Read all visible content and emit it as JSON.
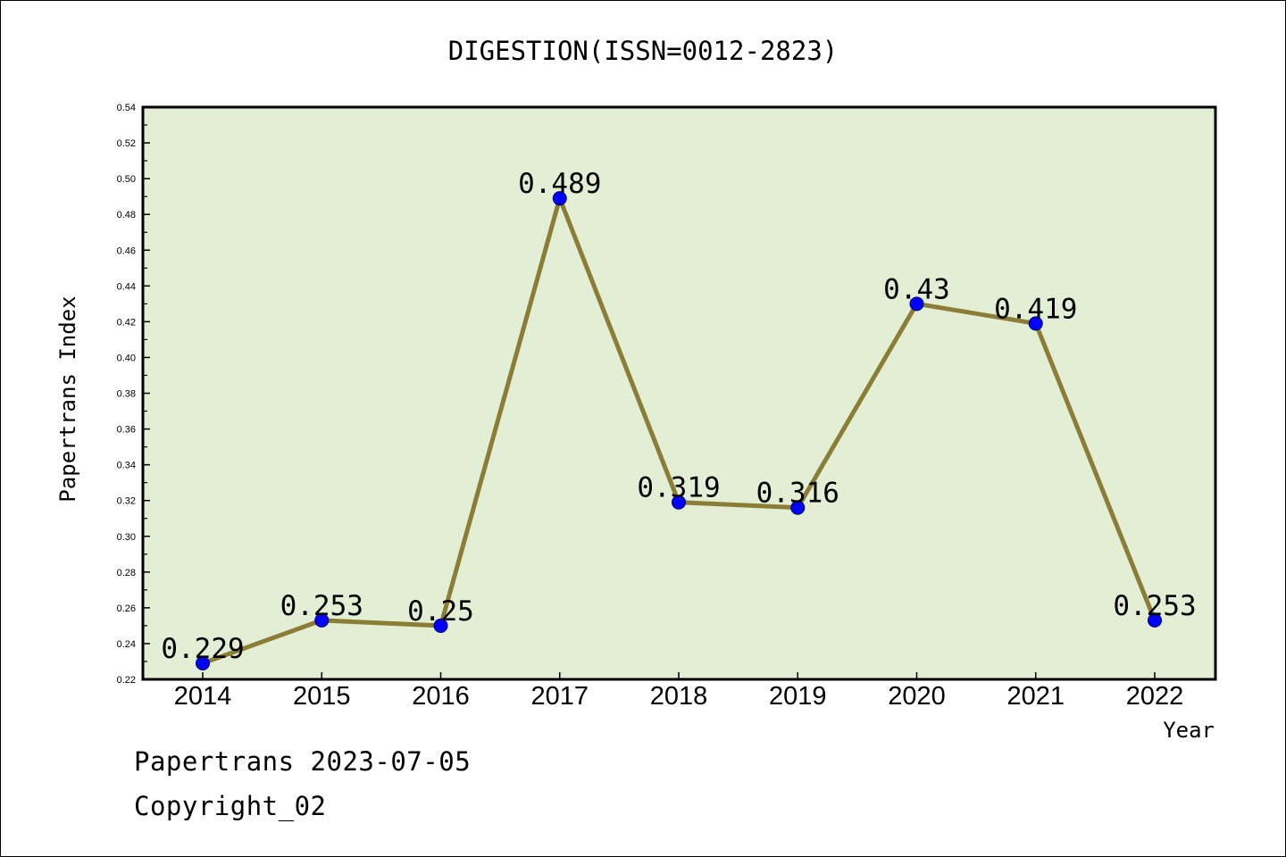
{
  "chart_data": {
    "type": "line",
    "title": "DIGESTION(ISSN=0012-2823)",
    "xlabel": "Year",
    "ylabel": "Papertrans Index",
    "categories": [
      "2014",
      "2015",
      "2016",
      "2017",
      "2018",
      "2019",
      "2020",
      "2021",
      "2022"
    ],
    "values": [
      0.229,
      0.253,
      0.25,
      0.489,
      0.319,
      0.316,
      0.43,
      0.419,
      0.253
    ],
    "data_labels": [
      "0.229",
      "0.253",
      "0.25",
      "0.489",
      "0.319",
      "0.316",
      "0.43",
      "0.419",
      "0.253"
    ],
    "ylim": [
      0.22,
      0.54
    ],
    "yticks": [
      "0.22",
      "0.24",
      "0.26",
      "0.28",
      "0.30",
      "0.32",
      "0.34",
      "0.36",
      "0.38",
      "0.40",
      "0.42",
      "0.44",
      "0.46",
      "0.48",
      "0.50",
      "0.52",
      "0.54"
    ],
    "grid": false,
    "colors": {
      "plot_background": "#e2efd5",
      "line": "#8b7d36",
      "marker": "#0000ff"
    }
  },
  "footer": {
    "line1": "Papertrans 2023-07-05",
    "line2": "Copyright_02"
  }
}
